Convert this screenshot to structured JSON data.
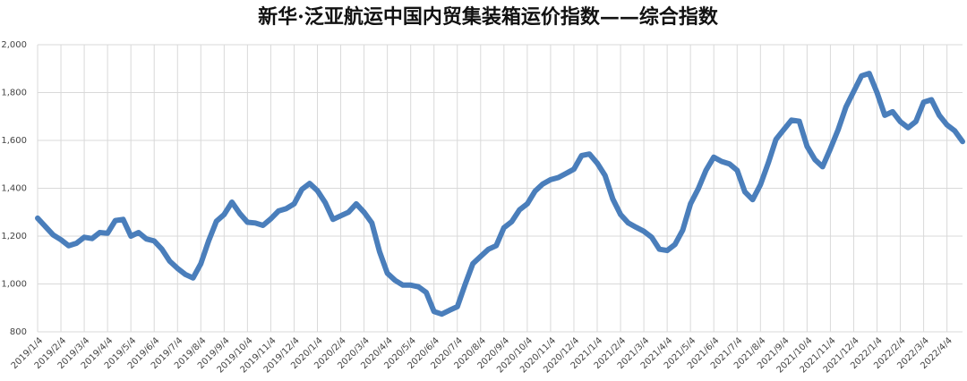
{
  "chart_data": {
    "type": "line",
    "title": "新华·泛亚航运中国内贸集装箱运价指数——综合指数",
    "categories": [
      "2019/1/4",
      null,
      null,
      "2019/2/4",
      null,
      null,
      "2019/3/4",
      null,
      null,
      "2019/4/4",
      null,
      null,
      "2019/5/4",
      null,
      null,
      "2019/6/4",
      null,
      null,
      "2019/7/4",
      null,
      null,
      "2019/8/4",
      null,
      null,
      "2019/9/4",
      null,
      null,
      "2019/10/4",
      null,
      null,
      "2019/11/4",
      null,
      null,
      "2019/12/4",
      null,
      null,
      "2020/1/4",
      null,
      null,
      "2020/2/4",
      null,
      null,
      "2020/3/4",
      null,
      null,
      "2020/4/4",
      null,
      null,
      "2020/5/4",
      null,
      null,
      "2020/6/4",
      null,
      null,
      "2020/7/4",
      null,
      null,
      "2020/8/4",
      null,
      null,
      "2020/9/4",
      null,
      null,
      "2020/10/4",
      null,
      null,
      "2020/11/4",
      null,
      null,
      "2020/12/4",
      null,
      null,
      "2021/1/4",
      null,
      null,
      "2021/2/4",
      null,
      null,
      "2021/3/4",
      null,
      null,
      "2021/4/4",
      null,
      null,
      "2021/5/4",
      null,
      null,
      "2021/6/4",
      null,
      null,
      "2021/7/4",
      null,
      null,
      "2021/8/4",
      null,
      null,
      "2021/9/4",
      null,
      null,
      "2021/10/4",
      null,
      null,
      "2021/11/4",
      null,
      null,
      "2021/12/4",
      null,
      null,
      "2022/1/4",
      null,
      null,
      "2022/2/4",
      null,
      null,
      "2022/3/4",
      null,
      null,
      "2022/4/4",
      null,
      null
    ],
    "series": [
      {
        "name": "综合指数",
        "color": "#4a7ebb",
        "values": [
          1275,
          1240,
          1205,
          1185,
          1160,
          1170,
          1195,
          1190,
          1215,
          1212,
          1265,
          1270,
          1200,
          1215,
          1188,
          1180,
          1145,
          1095,
          1065,
          1040,
          1025,
          1085,
          1180,
          1262,
          1290,
          1342,
          1295,
          1258,
          1255,
          1245,
          1272,
          1305,
          1315,
          1335,
          1395,
          1420,
          1390,
          1340,
          1270,
          1285,
          1300,
          1335,
          1300,
          1255,
          1135,
          1045,
          1015,
          995,
          995,
          988,
          965,
          885,
          874,
          890,
          905,
          997,
          1085,
          1115,
          1145,
          1160,
          1235,
          1260,
          1310,
          1335,
          1388,
          1418,
          1436,
          1445,
          1462,
          1480,
          1537,
          1543,
          1505,
          1454,
          1355,
          1290,
          1255,
          1237,
          1220,
          1195,
          1145,
          1140,
          1165,
          1225,
          1335,
          1398,
          1475,
          1530,
          1512,
          1502,
          1475,
          1385,
          1352,
          1415,
          1505,
          1605,
          1645,
          1685,
          1680,
          1575,
          1520,
          1490,
          1565,
          1645,
          1740,
          1805,
          1870,
          1880,
          1800,
          1705,
          1720,
          1678,
          1653,
          1679,
          1760,
          1770,
          1705,
          1665,
          1640,
          1595
        ]
      }
    ],
    "ylim": [
      800,
      2000
    ],
    "yticks": [
      800,
      {
        "value": 1000,
        "label": "1,000"
      },
      {
        "value": 1200,
        "label": "1,200"
      },
      {
        "value": 1400,
        "label": "1,400"
      },
      {
        "value": 1600,
        "label": "1,600"
      },
      {
        "value": 1800,
        "label": "1,800"
      },
      {
        "value": 2000,
        "label": "2,000"
      }
    ],
    "grid": true
  }
}
